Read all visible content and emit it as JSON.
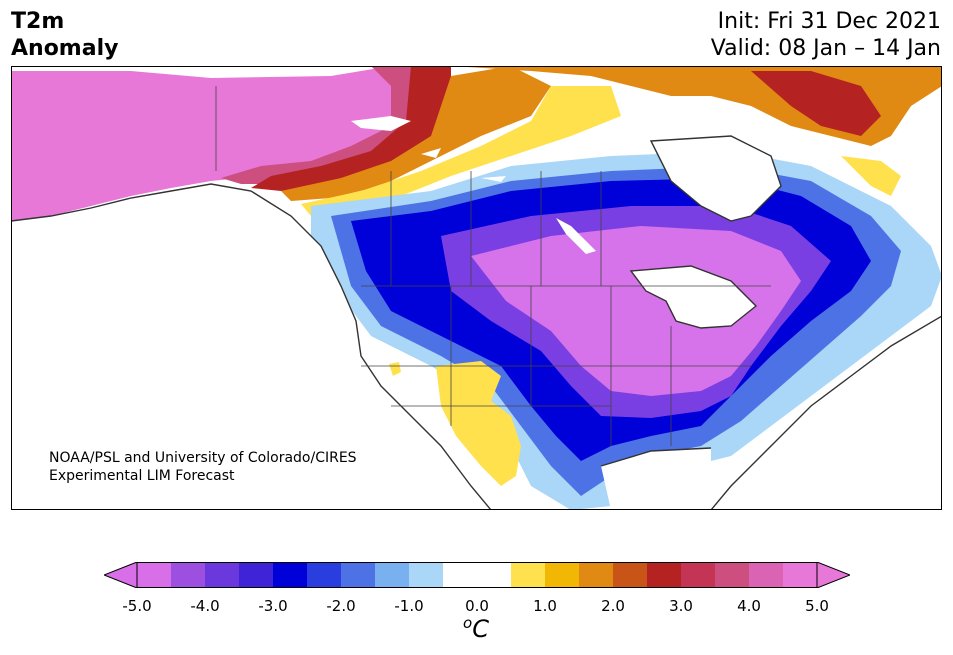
{
  "header": {
    "title_line1": "T2m",
    "title_line2": "Anomaly",
    "init": "Init: Fri 31 Dec 2021",
    "valid": "Valid: 08 Jan – 14 Jan"
  },
  "credit": {
    "line1": "NOAA/PSL and University of Colorado/CIRES",
    "line2": "Experimental LIM Forecast"
  },
  "colorbar": {
    "ticks": [
      "-5.0",
      "-4.0",
      "-3.0",
      "-2.0",
      "-1.0",
      "0.0",
      "1.0",
      "2.0",
      "3.0",
      "4.0",
      "5.0"
    ],
    "unit_base": "C",
    "unit_sup": "o",
    "colors": [
      "#d86ee8",
      "#9d50e0",
      "#6a38dd",
      "#3f23d6",
      "#0000d8",
      "#2a3edf",
      "#4d72e6",
      "#78b0f0",
      "#aad6f8",
      "#ffffff",
      "#ffffff",
      "#ffe14d",
      "#f2b705",
      "#e08a14",
      "#c85418",
      "#b52222",
      "#c43454",
      "#cc4f80",
      "#db63b3",
      "#e878d8"
    ],
    "neg_end_color": "#d86ee8",
    "pos_end_color": "#e878d8"
  },
  "colors": {
    "strong_cold": "#d673ea",
    "cold_purple": "#7a3fe2",
    "deep_blue": "#0000d8",
    "mid_blue": "#4d72e6",
    "light_blue": "#aad6f8",
    "warm_yellow": "#ffe14d",
    "orange": "#e08a14",
    "red": "#b52222",
    "strong_warm": "#e878d8",
    "coast": "#333333"
  }
}
